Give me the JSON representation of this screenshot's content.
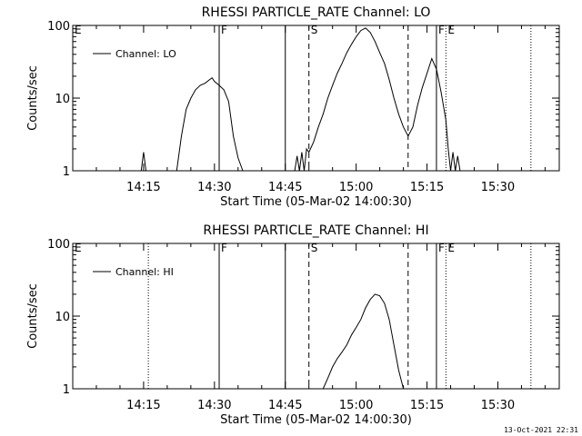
{
  "footer": {
    "timestamp": "13-Oct-2021 22:31"
  },
  "chart_data": [
    {
      "type": "line",
      "title": "RHESSI PARTICLE_RATE Channel: LO",
      "xlabel": "Start Time (05-Mar-02 14:00:30)",
      "ylabel": "Counts/sec",
      "yscale": "log",
      "ylim": [
        1,
        100
      ],
      "yticks": [
        {
          "v": 1,
          "label": "1"
        },
        {
          "v": 10,
          "label": "10"
        },
        {
          "v": 100,
          "label": "100"
        }
      ],
      "xlim": [
        "14:00",
        "15:43"
      ],
      "xticks": [
        "14:15",
        "14:30",
        "14:45",
        "15:00",
        "15:15",
        "15:30"
      ],
      "legend": {
        "label": "Channel: LO",
        "position": "top-left"
      },
      "markers": [
        {
          "time": "14:00",
          "style": "dotted",
          "label": "E"
        },
        {
          "time": "14:31",
          "style": "solid",
          "label": "F"
        },
        {
          "time": "14:45",
          "style": "solid",
          "label": ""
        },
        {
          "time": "14:50",
          "style": "dashed",
          "label": "S"
        },
        {
          "time": "15:11",
          "style": "dashed",
          "label": ""
        },
        {
          "time": "15:17",
          "style": "solid",
          "label": "F"
        },
        {
          "time": "15:19",
          "style": "dotted",
          "label": "E"
        },
        {
          "time": "15:37",
          "style": "dotted",
          "label": ""
        }
      ],
      "series": [
        {
          "x": [
            "14:14:30",
            "14:15:00",
            "14:15:30",
            "14:22",
            "14:23",
            "14:24",
            "14:25",
            "14:26",
            "14:27",
            "14:28",
            "14:29",
            "14:29:30",
            "14:30",
            "14:31",
            "14:32",
            "14:33",
            "14:34",
            "14:35",
            "14:36",
            "14:47",
            "14:47:30",
            "14:48",
            "14:48:30",
            "14:49",
            "14:49:30",
            "14:50",
            "14:51",
            "14:52",
            "14:53",
            "14:54",
            "14:55",
            "14:56",
            "14:57",
            "14:58",
            "14:59",
            "15:00",
            "15:01",
            "15:02",
            "15:03",
            "15:04",
            "15:05",
            "15:06",
            "15:07",
            "15:08",
            "15:09",
            "15:10",
            "15:11",
            "15:12",
            "15:13",
            "15:14",
            "15:15",
            "15:16",
            "15:17",
            "15:18",
            "15:19",
            "15:19:30",
            "15:20",
            "15:20:30",
            "15:21",
            "15:21:30",
            "15:22"
          ],
          "y": [
            1,
            1.8,
            1,
            1,
            3,
            7,
            10,
            13,
            15,
            16,
            18,
            19,
            17,
            15,
            13,
            9,
            3,
            1.5,
            1,
            1,
            1.6,
            1,
            1.8,
            1,
            2,
            1.8,
            2.5,
            4,
            6,
            10,
            15,
            22,
            30,
            42,
            55,
            70,
            85,
            92,
            80,
            60,
            42,
            30,
            18,
            10,
            6,
            4,
            3,
            4,
            8,
            14,
            22,
            35,
            25,
            12,
            5,
            2,
            1,
            1.8,
            1,
            1.6,
            1
          ]
        }
      ]
    },
    {
      "type": "line",
      "title": "RHESSI PARTICLE_RATE Channel: HI",
      "xlabel": "Start Time (05-Mar-02 14:00:30)",
      "ylabel": "Counts/sec",
      "yscale": "log",
      "ylim": [
        1,
        100
      ],
      "yticks": [
        {
          "v": 1,
          "label": "1"
        },
        {
          "v": 10,
          "label": "10"
        },
        {
          "v": 100,
          "label": "100"
        }
      ],
      "xlim": [
        "14:00",
        "15:43"
      ],
      "xticks": [
        "14:15",
        "14:30",
        "14:45",
        "15:00",
        "15:15",
        "15:30"
      ],
      "legend": {
        "label": "Channel: HI",
        "position": "top-left"
      },
      "markers": [
        {
          "time": "14:00",
          "style": "dotted",
          "label": "E"
        },
        {
          "time": "14:16",
          "style": "dotted",
          "label": ""
        },
        {
          "time": "14:31",
          "style": "solid",
          "label": "F"
        },
        {
          "time": "14:45",
          "style": "solid",
          "label": ""
        },
        {
          "time": "14:50",
          "style": "dashed",
          "label": "S"
        },
        {
          "time": "15:11",
          "style": "dashed",
          "label": ""
        },
        {
          "time": "15:17",
          "style": "solid",
          "label": "F"
        },
        {
          "time": "15:19",
          "style": "dotted",
          "label": "E"
        },
        {
          "time": "15:37",
          "style": "dotted",
          "label": ""
        }
      ],
      "series": [
        {
          "x": [
            "14:53",
            "14:54",
            "14:55",
            "14:56",
            "14:57",
            "14:58",
            "14:59",
            "15:00",
            "15:01",
            "15:02",
            "15:03",
            "15:04",
            "15:05",
            "15:06",
            "15:07",
            "15:08",
            "15:09",
            "15:10"
          ],
          "y": [
            1,
            1.4,
            2,
            2.6,
            3.2,
            4,
            5.5,
            7,
            9,
            13,
            17,
            20,
            19,
            15,
            9,
            4,
            1.8,
            1
          ],
          "y_note": ""
        }
      ]
    }
  ]
}
